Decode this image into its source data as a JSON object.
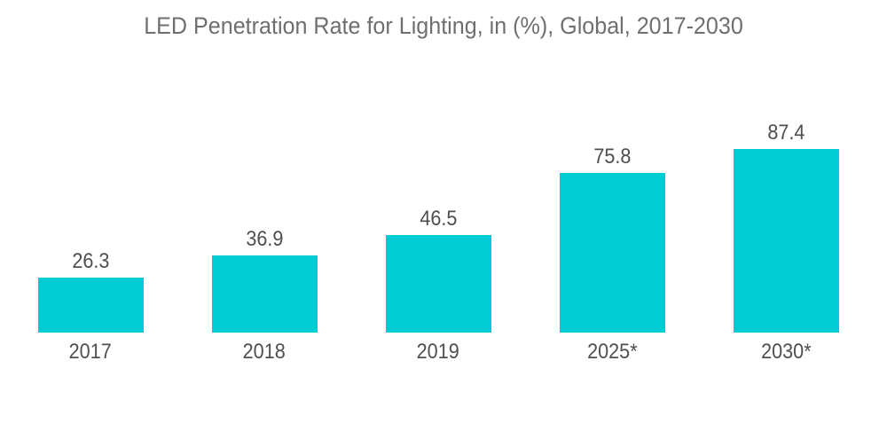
{
  "page": {
    "background_color": "#FFFFFF"
  },
  "chart_data": {
    "type": "bar",
    "title": "LED Penetration Rate for Lighting, in (%), Global, 2017-2030",
    "categories": [
      "2017",
      "2018",
      "2019",
      "2025*",
      "2030*"
    ],
    "values": [
      26.3,
      36.9,
      46.5,
      75.8,
      87.4
    ],
    "value_labels": [
      "26.3",
      "36.9",
      "46.5",
      "75.8",
      "87.4"
    ],
    "unit": "%",
    "xlabel": "",
    "ylabel": "",
    "ylim": [
      0,
      100
    ],
    "grid": false,
    "legend": "none",
    "axis_lines": "none",
    "bar_color": "#00CCD3",
    "title_color": "#6F6F6F",
    "value_label_color": "#4F4F4F",
    "tick_label_color": "#4F4F4F"
  }
}
